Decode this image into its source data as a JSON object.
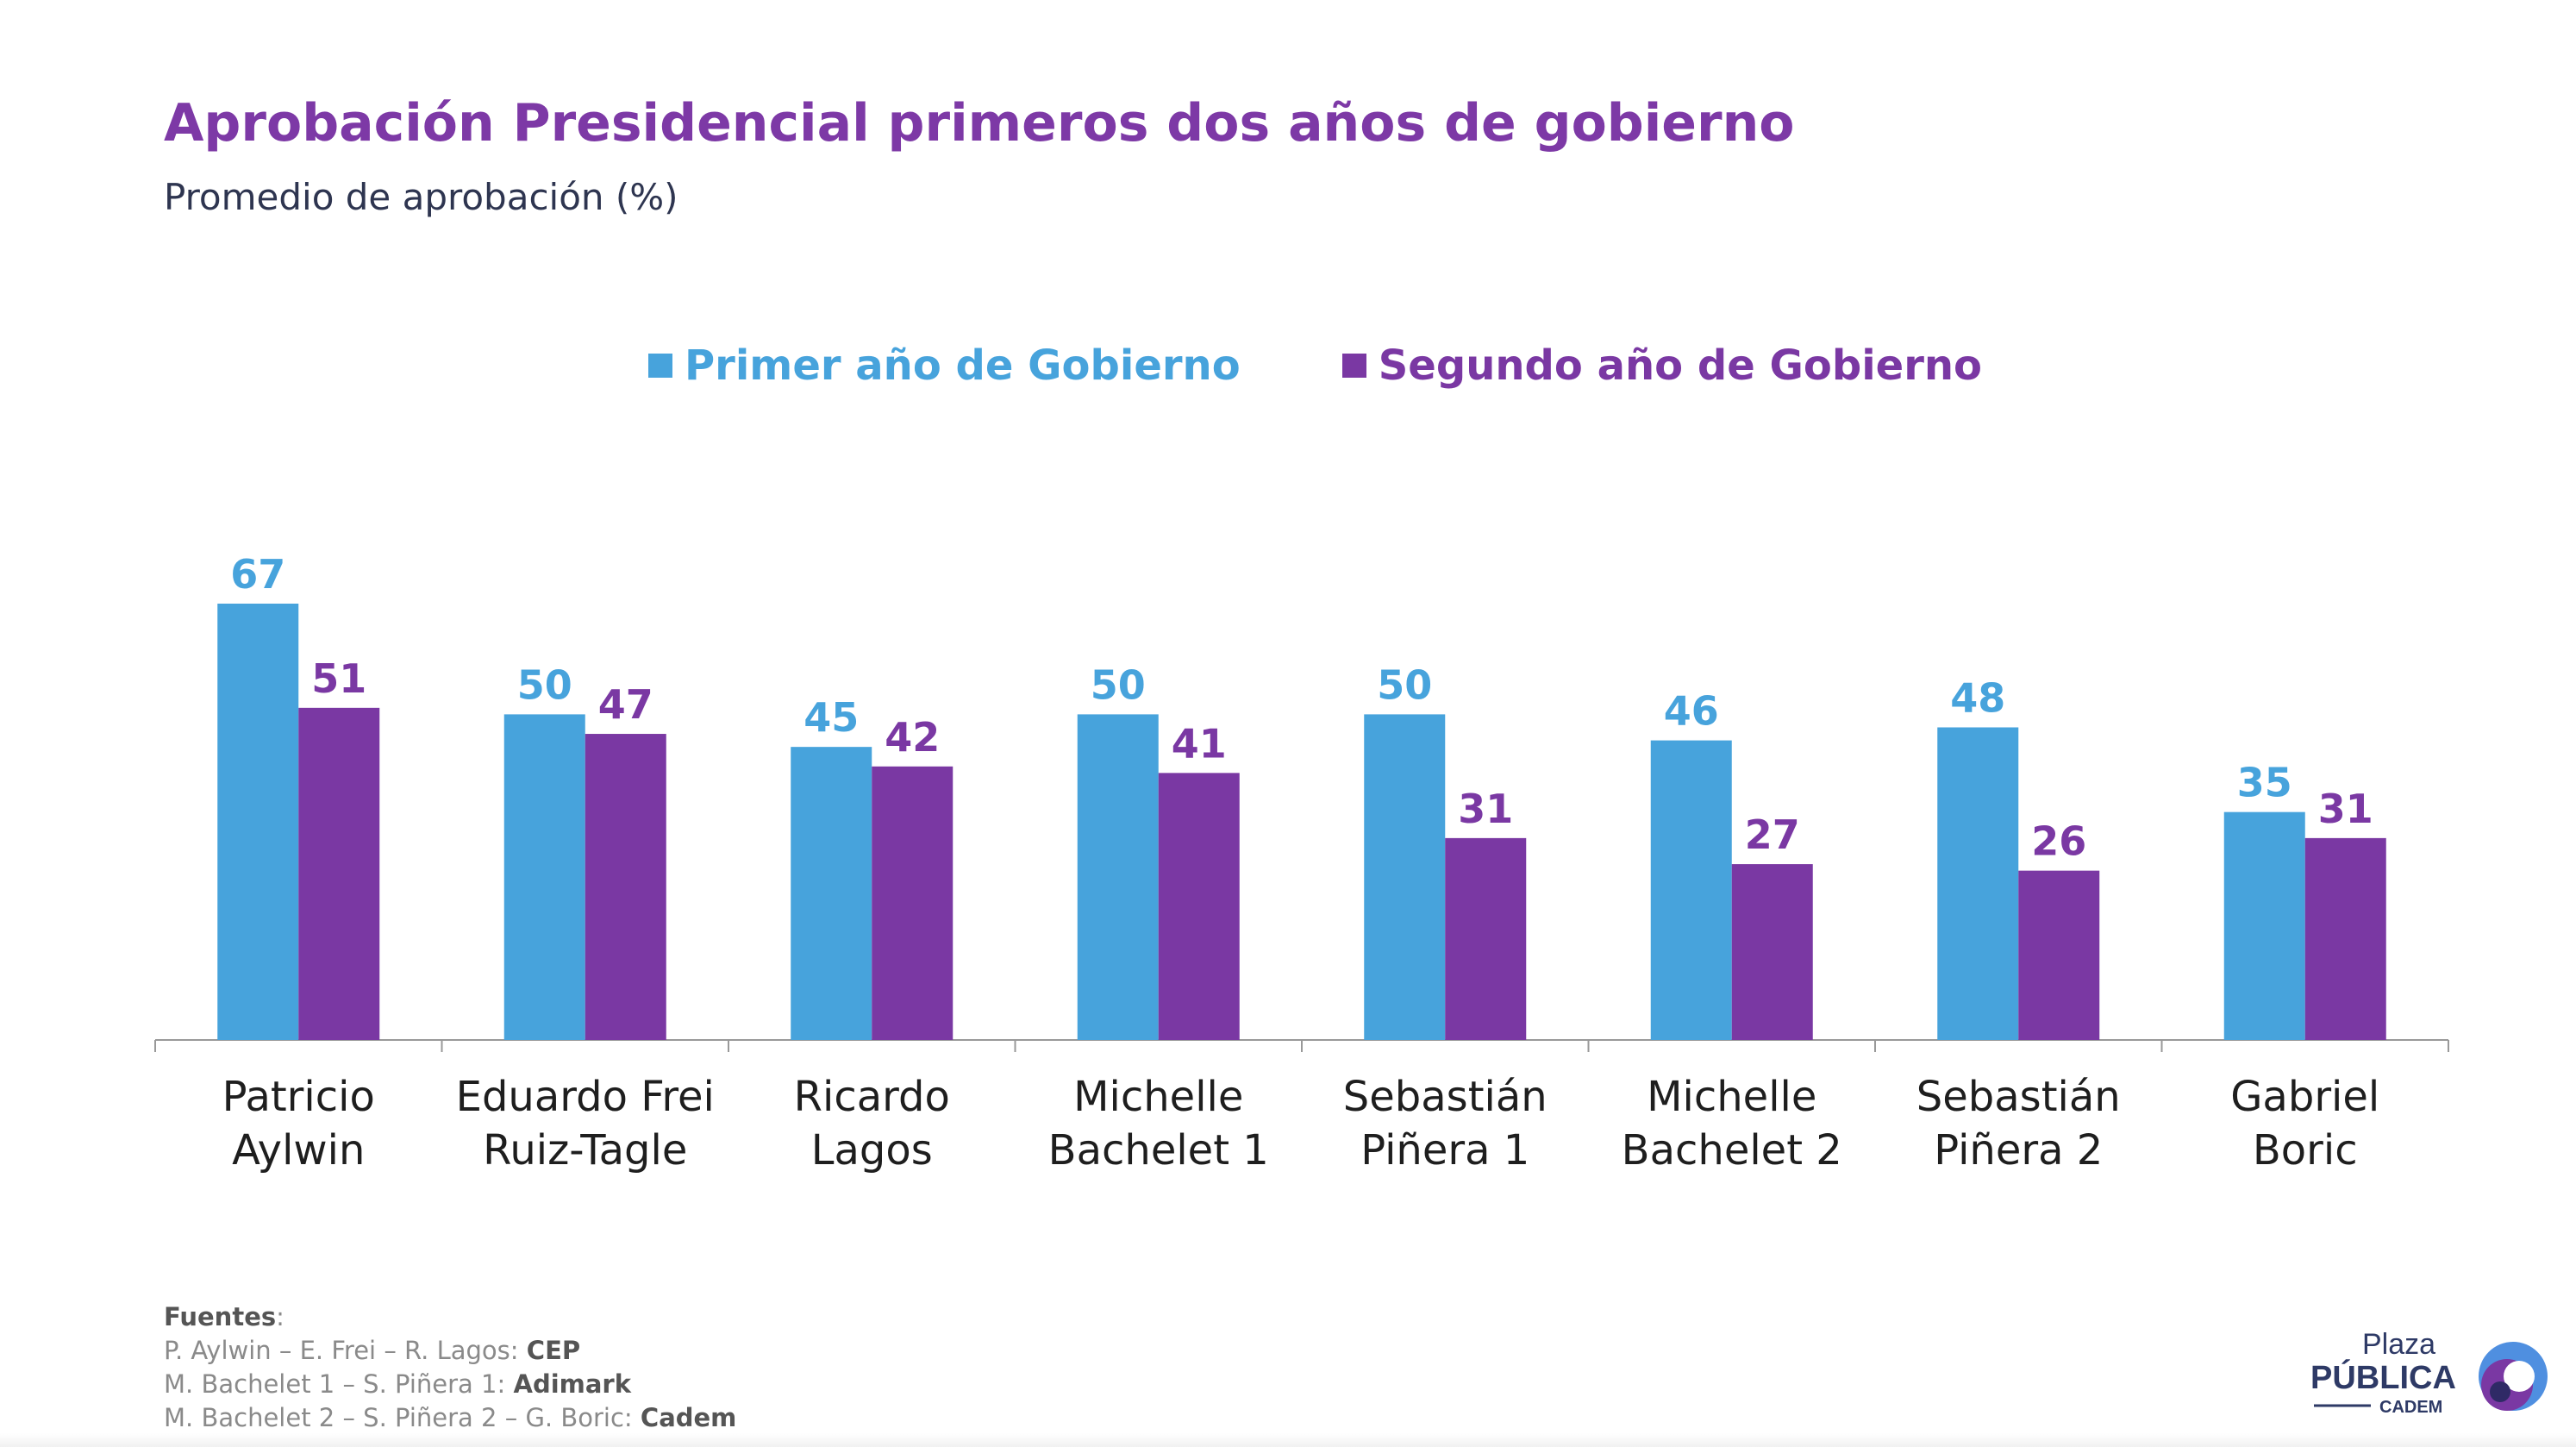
{
  "title": "Aprobación Presidencial primeros dos años de gobierno",
  "subtitle": "Promedio de aprobación (%)",
  "colors": {
    "series1": "#47a3dc",
    "series2": "#7a38a3",
    "title": "#7d39a6",
    "axis": "#999999"
  },
  "chart_data": {
    "type": "bar",
    "title": "Aprobación Presidencial primeros dos años de gobierno",
    "subtitle": "Promedio de aprobación (%)",
    "categories": [
      [
        "Patricio",
        "Aylwin"
      ],
      [
        "Eduardo Frei",
        "Ruiz-Tagle"
      ],
      [
        "Ricardo",
        "Lagos"
      ],
      [
        "Michelle",
        "Bachelet 1"
      ],
      [
        "Sebastián",
        "Piñera 1"
      ],
      [
        "Michelle",
        "Bachelet 2"
      ],
      [
        "Sebastián",
        "Piñera 2"
      ],
      [
        "Gabriel",
        "Boric"
      ]
    ],
    "series": [
      {
        "name": "Primer año de Gobierno",
        "color": "#47a3dc",
        "values": [
          67,
          50,
          45,
          50,
          50,
          46,
          48,
          35
        ]
      },
      {
        "name": "Segundo año de Gobierno",
        "color": "#7a38a3",
        "values": [
          51,
          47,
          42,
          41,
          31,
          27,
          26,
          31
        ]
      }
    ],
    "ylim": [
      0,
      67
    ],
    "grid": false,
    "legend": "top-center",
    "data_labels": true
  },
  "sources": {
    "heading": "Fuentes",
    "lines": [
      {
        "prefix": "P. Aylwin – E. Frei – R. Lagos: ",
        "source": "CEP"
      },
      {
        "prefix": "M. Bachelet 1 – S. Piñera 1: ",
        "source": "Adimark"
      },
      {
        "prefix": "M. Bachelet 2 – S. Piñera 2 – G. Boric: ",
        "source": "Cadem"
      }
    ]
  },
  "logo": {
    "line1": "Plaza",
    "line2": "PÚBLICA",
    "line3": "CADEM"
  }
}
